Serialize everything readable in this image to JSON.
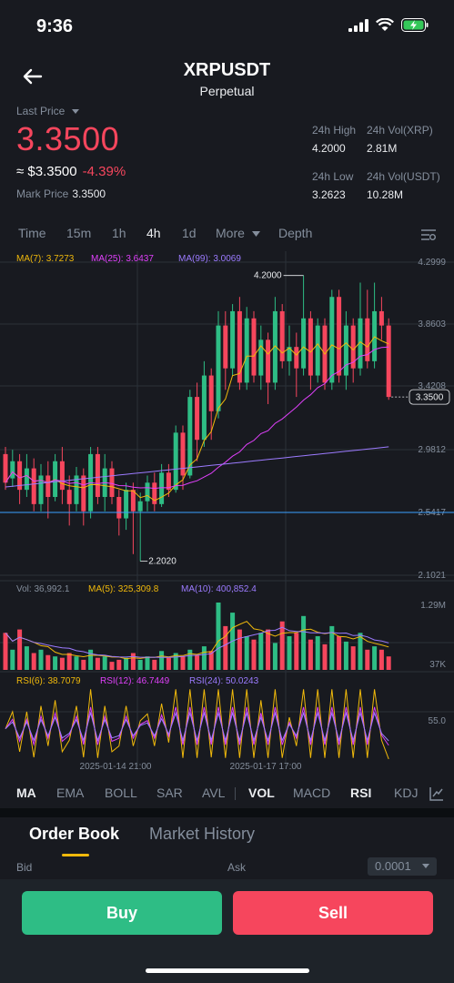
{
  "status": {
    "time": "9:36"
  },
  "header": {
    "title": "XRPUSDT",
    "subtitle": "Perpetual"
  },
  "price": {
    "last_price_label": "Last Price",
    "last_price": "3.3500",
    "approx": "≈ $3.3500",
    "change": "-4.39%",
    "mark_label": "Mark Price",
    "mark_value": "3.3500"
  },
  "stats": {
    "high_label": "24h High",
    "high": "4.2000",
    "volxrp_label": "24h Vol(XRP)",
    "volxrp": "2.81M",
    "low_label": "24h Low",
    "low": "3.2623",
    "volusdt_label": "24h Vol(USDT)",
    "volusdt": "10.28M"
  },
  "tabs": [
    "Time",
    "15m",
    "1h",
    "4h",
    "1d",
    "More",
    "Depth"
  ],
  "ma": {
    "ma7": "MA(7): 3.7273",
    "ma25": "MA(25): 3.6437",
    "ma99": "MA(99): 3.0069"
  },
  "price_axis": [
    "4.2999",
    "3.8603",
    "3.4208",
    "2.9812",
    "2.5417",
    "2.1021"
  ],
  "annotations": {
    "high": "4.2000",
    "low": "2.2020",
    "current": "3.3500"
  },
  "volume": {
    "vol": "Vol: 36,992.1",
    "ma5": "MA(5): 325,309.8",
    "ma10": "MA(10): 400,852.4",
    "axis_top": "1.29M",
    "axis_bottom": "37K"
  },
  "rsi": {
    "rsi6": "RSI(6): 38.7079",
    "rsi12": "RSI(12): 46.7449",
    "rsi24": "RSI(24): 50.0243",
    "axis": "55.0"
  },
  "dates": [
    "2025-01-14 21:00",
    "2025-01-17 17:00"
  ],
  "indicators": [
    "MA",
    "EMA",
    "BOLL",
    "SAR",
    "AVL",
    "VOL",
    "MACD",
    "RSI",
    "KDJ"
  ],
  "orderbook": {
    "tab1": "Order Book",
    "tab2": "Market History",
    "bid": "Bid",
    "ask": "Ask",
    "precision": "0.0001"
  },
  "actions": {
    "buy": "Buy",
    "sell": "Sell"
  },
  "colors": {
    "up": "#2ebd85",
    "down": "#f6465d",
    "ma7": "#f0b90b",
    "ma25": "#e040fb",
    "ma99": "#9c7bff",
    "accent": "#f0b90b"
  }
}
